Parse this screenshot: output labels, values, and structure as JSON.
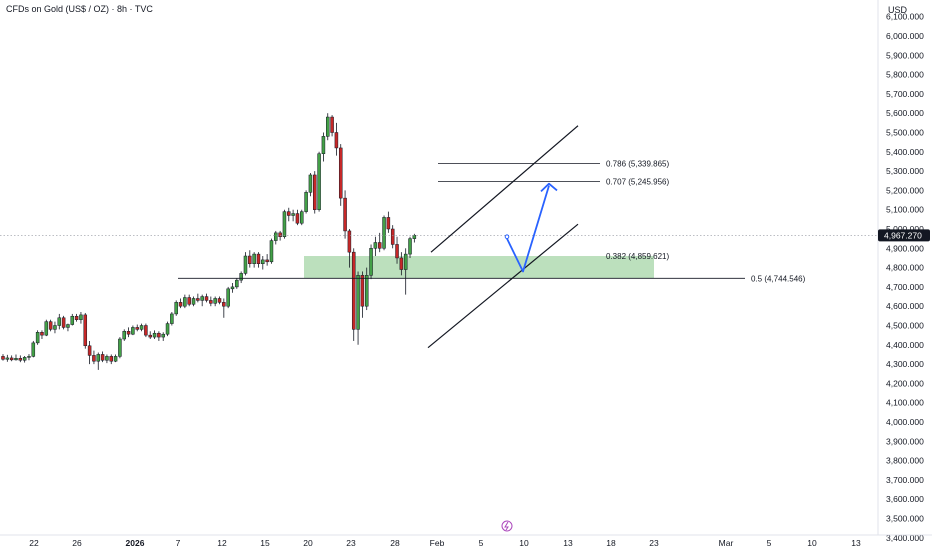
{
  "header": {
    "title": "CFDs on Gold (US$ / OZ) · 8h · TVC",
    "currency": "USD"
  },
  "colors": {
    "up": "#26a69a",
    "up_fill": "#43a047",
    "down": "#ef5350",
    "down_fill": "#c62828",
    "zone": "#a5d6a7",
    "arrow": "#2962ff",
    "price_label_bg": "#131722"
  },
  "y_axis": {
    "ticks": [
      "3,400.000",
      "3,500.000",
      "3,600.000",
      "3,700.000",
      "3,800.000",
      "3,900.000",
      "4,000.000",
      "4,100.000",
      "4,200.000",
      "4,300.000",
      "4,400.000",
      "4,500.000",
      "4,600.000",
      "4,700.000",
      "4,800.000",
      "4,900.000",
      "5,000.000",
      "5,100.000",
      "5,200.000",
      "5,300.000",
      "5,400.000",
      "5,500.000",
      "5,600.000",
      "5,700.000",
      "5,800.000",
      "5,900.000",
      "6,000.000",
      "6,100.000"
    ],
    "current_price": "4,967.270"
  },
  "x_axis": {
    "ticks": [
      {
        "label": "22"
      },
      {
        "label": "26"
      },
      {
        "label": "2026",
        "bold": true
      },
      {
        "label": "7"
      },
      {
        "label": "12"
      },
      {
        "label": "15"
      },
      {
        "label": "20"
      },
      {
        "label": "23"
      },
      {
        "label": "28"
      },
      {
        "label": "Feb"
      },
      {
        "label": "5"
      },
      {
        "label": "10"
      },
      {
        "label": "13"
      },
      {
        "label": "18"
      },
      {
        "label": "23"
      },
      {
        "label": "Mar"
      },
      {
        "label": "5"
      },
      {
        "label": "10"
      },
      {
        "label": "13"
      }
    ]
  },
  "fib_levels": [
    {
      "label": "0.786 (5,339.865)",
      "price": 5339.865
    },
    {
      "label": "0.707 (5,245.956)",
      "price": 5245.956
    },
    {
      "label": "0.382 (4,859.621)",
      "price": 4859.621
    },
    {
      "label": "0.5 (4,744.546)",
      "price": 4744.546
    }
  ],
  "chart_data": {
    "type": "candlestick",
    "symbol": "CFDs on Gold (US$ / OZ)",
    "timeframe": "8h",
    "ylim": [
      3380,
      6150
    ],
    "current_price": 4967.27,
    "candles": [
      {
        "o": 4340,
        "h": 4352,
        "l": 4318,
        "c": 4325
      },
      {
        "o": 4325,
        "h": 4348,
        "l": 4312,
        "c": 4332
      },
      {
        "o": 4332,
        "h": 4345,
        "l": 4315,
        "c": 4322
      },
      {
        "o": 4322,
        "h": 4350,
        "l": 4318,
        "c": 4330
      },
      {
        "o": 4330,
        "h": 4345,
        "l": 4310,
        "c": 4320
      },
      {
        "o": 4320,
        "h": 4342,
        "l": 4308,
        "c": 4335
      },
      {
        "o": 4335,
        "h": 4352,
        "l": 4320,
        "c": 4340
      },
      {
        "o": 4340,
        "h": 4420,
        "l": 4335,
        "c": 4410
      },
      {
        "o": 4410,
        "h": 4475,
        "l": 4400,
        "c": 4465
      },
      {
        "o": 4465,
        "h": 4475,
        "l": 4430,
        "c": 4450
      },
      {
        "o": 4450,
        "h": 4530,
        "l": 4445,
        "c": 4520
      },
      {
        "o": 4520,
        "h": 4530,
        "l": 4470,
        "c": 4480
      },
      {
        "o": 4480,
        "h": 4520,
        "l": 4460,
        "c": 4500
      },
      {
        "o": 4500,
        "h": 4560,
        "l": 4480,
        "c": 4540
      },
      {
        "o": 4540,
        "h": 4550,
        "l": 4480,
        "c": 4490
      },
      {
        "o": 4490,
        "h": 4510,
        "l": 4470,
        "c": 4505
      },
      {
        "o": 4505,
        "h": 4560,
        "l": 4500,
        "c": 4548
      },
      {
        "o": 4548,
        "h": 4560,
        "l": 4520,
        "c": 4530
      },
      {
        "o": 4530,
        "h": 4570,
        "l": 4510,
        "c": 4555
      },
      {
        "o": 4555,
        "h": 4565,
        "l": 4380,
        "c": 4395
      },
      {
        "o": 4395,
        "h": 4420,
        "l": 4300,
        "c": 4345
      },
      {
        "o": 4345,
        "h": 4370,
        "l": 4300,
        "c": 4315
      },
      {
        "o": 4315,
        "h": 4360,
        "l": 4270,
        "c": 4350
      },
      {
        "o": 4350,
        "h": 4365,
        "l": 4310,
        "c": 4320
      },
      {
        "o": 4320,
        "h": 4350,
        "l": 4305,
        "c": 4340
      },
      {
        "o": 4340,
        "h": 4350,
        "l": 4300,
        "c": 4315
      },
      {
        "o": 4315,
        "h": 4350,
        "l": 4310,
        "c": 4340
      },
      {
        "o": 4340,
        "h": 4440,
        "l": 4330,
        "c": 4430
      },
      {
        "o": 4430,
        "h": 4480,
        "l": 4420,
        "c": 4470
      },
      {
        "o": 4470,
        "h": 4490,
        "l": 4440,
        "c": 4455
      },
      {
        "o": 4455,
        "h": 4500,
        "l": 4450,
        "c": 4490
      },
      {
        "o": 4490,
        "h": 4505,
        "l": 4470,
        "c": 4480
      },
      {
        "o": 4480,
        "h": 4510,
        "l": 4470,
        "c": 4500
      },
      {
        "o": 4500,
        "h": 4510,
        "l": 4440,
        "c": 4450
      },
      {
        "o": 4450,
        "h": 4470,
        "l": 4430,
        "c": 4440
      },
      {
        "o": 4440,
        "h": 4475,
        "l": 4430,
        "c": 4460
      },
      {
        "o": 4460,
        "h": 4470,
        "l": 4420,
        "c": 4440
      },
      {
        "o": 4440,
        "h": 4465,
        "l": 4420,
        "c": 4455
      },
      {
        "o": 4455,
        "h": 4520,
        "l": 4445,
        "c": 4510
      },
      {
        "o": 4510,
        "h": 4570,
        "l": 4500,
        "c": 4560
      },
      {
        "o": 4560,
        "h": 4630,
        "l": 4550,
        "c": 4620
      },
      {
        "o": 4620,
        "h": 4640,
        "l": 4590,
        "c": 4600
      },
      {
        "o": 4600,
        "h": 4660,
        "l": 4590,
        "c": 4645
      },
      {
        "o": 4645,
        "h": 4660,
        "l": 4600,
        "c": 4610
      },
      {
        "o": 4610,
        "h": 4650,
        "l": 4600,
        "c": 4640
      },
      {
        "o": 4640,
        "h": 4665,
        "l": 4620,
        "c": 4630
      },
      {
        "o": 4630,
        "h": 4660,
        "l": 4600,
        "c": 4650
      },
      {
        "o": 4650,
        "h": 4665,
        "l": 4620,
        "c": 4630
      },
      {
        "o": 4630,
        "h": 4650,
        "l": 4600,
        "c": 4615
      },
      {
        "o": 4615,
        "h": 4650,
        "l": 4600,
        "c": 4640
      },
      {
        "o": 4640,
        "h": 4650,
        "l": 4610,
        "c": 4620
      },
      {
        "o": 4620,
        "h": 4640,
        "l": 4540,
        "c": 4600
      },
      {
        "o": 4600,
        "h": 4700,
        "l": 4590,
        "c": 4690
      },
      {
        "o": 4690,
        "h": 4720,
        "l": 4670,
        "c": 4700
      },
      {
        "o": 4700,
        "h": 4745,
        "l": 4690,
        "c": 4735
      },
      {
        "o": 4735,
        "h": 4780,
        "l": 4720,
        "c": 4770
      },
      {
        "o": 4770,
        "h": 4880,
        "l": 4760,
        "c": 4860
      },
      {
        "o": 4860,
        "h": 4890,
        "l": 4800,
        "c": 4820
      },
      {
        "o": 4820,
        "h": 4880,
        "l": 4800,
        "c": 4870
      },
      {
        "o": 4870,
        "h": 4880,
        "l": 4800,
        "c": 4820
      },
      {
        "o": 4820,
        "h": 4860,
        "l": 4790,
        "c": 4840
      },
      {
        "o": 4840,
        "h": 4870,
        "l": 4810,
        "c": 4830
      },
      {
        "o": 4830,
        "h": 4950,
        "l": 4820,
        "c": 4940
      },
      {
        "o": 4940,
        "h": 4990,
        "l": 4920,
        "c": 4980
      },
      {
        "o": 4980,
        "h": 4990,
        "l": 4940,
        "c": 4960
      },
      {
        "o": 4960,
        "h": 5100,
        "l": 4950,
        "c": 5090
      },
      {
        "o": 5090,
        "h": 5110,
        "l": 5040,
        "c": 5070
      },
      {
        "o": 5070,
        "h": 5100,
        "l": 5040,
        "c": 5080
      },
      {
        "o": 5080,
        "h": 5100,
        "l": 5020,
        "c": 5030
      },
      {
        "o": 5030,
        "h": 5100,
        "l": 5020,
        "c": 5090
      },
      {
        "o": 5090,
        "h": 5200,
        "l": 5080,
        "c": 5190
      },
      {
        "o": 5190,
        "h": 5290,
        "l": 5170,
        "c": 5280
      },
      {
        "o": 5280,
        "h": 5300,
        "l": 5080,
        "c": 5100
      },
      {
        "o": 5100,
        "h": 5400,
        "l": 5090,
        "c": 5390
      },
      {
        "o": 5390,
        "h": 5500,
        "l": 5350,
        "c": 5480
      },
      {
        "o": 5480,
        "h": 5600,
        "l": 5460,
        "c": 5580
      },
      {
        "o": 5580,
        "h": 5590,
        "l": 5480,
        "c": 5500
      },
      {
        "o": 5500,
        "h": 5550,
        "l": 5380,
        "c": 5420
      },
      {
        "o": 5420,
        "h": 5440,
        "l": 5120,
        "c": 5160
      },
      {
        "o": 5160,
        "h": 5200,
        "l": 4950,
        "c": 4990
      },
      {
        "o": 4990,
        "h": 5000,
        "l": 4800,
        "c": 4880
      },
      {
        "o": 4880,
        "h": 4900,
        "l": 4420,
        "c": 4480
      },
      {
        "o": 4480,
        "h": 4780,
        "l": 4400,
        "c": 4760
      },
      {
        "o": 4760,
        "h": 4780,
        "l": 4540,
        "c": 4600
      },
      {
        "o": 4600,
        "h": 4800,
        "l": 4580,
        "c": 4760
      },
      {
        "o": 4760,
        "h": 4920,
        "l": 4740,
        "c": 4900
      },
      {
        "o": 4900,
        "h": 4960,
        "l": 4860,
        "c": 4930
      },
      {
        "o": 4930,
        "h": 4980,
        "l": 4880,
        "c": 4900
      },
      {
        "o": 4900,
        "h": 5070,
        "l": 4890,
        "c": 5060
      },
      {
        "o": 5060,
        "h": 5090,
        "l": 4980,
        "c": 5000
      },
      {
        "o": 5000,
        "h": 5020,
        "l": 4900,
        "c": 4920
      },
      {
        "o": 4920,
        "h": 4960,
        "l": 4820,
        "c": 4850
      },
      {
        "o": 4850,
        "h": 4880,
        "l": 4760,
        "c": 4790
      },
      {
        "o": 4790,
        "h": 4900,
        "l": 4660,
        "c": 4870
      },
      {
        "o": 4870,
        "h": 4960,
        "l": 4850,
        "c": 4950
      },
      {
        "o": 4950,
        "h": 4975,
        "l": 4930,
        "c": 4967.27
      }
    ]
  }
}
